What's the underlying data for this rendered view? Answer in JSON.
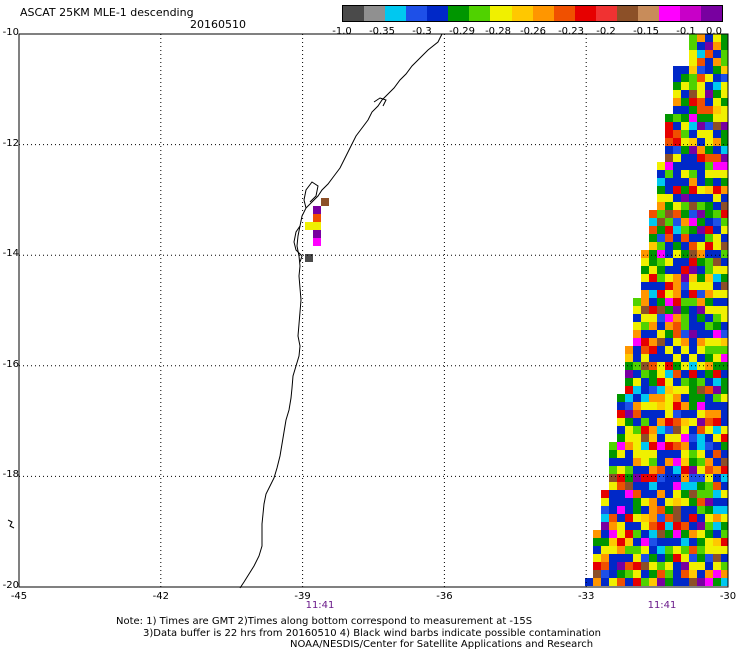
{
  "header": {
    "title": "ASCAT 25KM MLE-1 descending",
    "date": "20160510"
  },
  "colorbar": {
    "colors": [
      "#4a4a4a",
      "#909090",
      "#00c8f0",
      "#1e50e8",
      "#0028c8",
      "#009600",
      "#50d200",
      "#f0f000",
      "#ffc800",
      "#ff9600",
      "#f05000",
      "#e60000",
      "#f03232",
      "#8c5028",
      "#c88c5a",
      "#ff00ff",
      "#c800c8",
      "#7800a0"
    ],
    "labels": [
      "-1.0",
      "-0.35",
      "-0.3",
      "-0.29",
      "-0.28",
      "-0.26",
      "-0.23",
      "-0.2",
      "-0.15",
      "-0.1",
      "0.0"
    ]
  },
  "map": {
    "lat_labels": [
      "-10",
      "-12",
      "-14",
      "-16",
      "-18",
      "-20"
    ],
    "lon_labels": [
      "-45",
      "-42",
      "-39",
      "-36",
      "-33",
      "-30"
    ],
    "pass_times": [
      "11:41",
      "11:41"
    ],
    "frame_color": "#000000",
    "grid_color": "#000000"
  },
  "notes": [
    "Note: 1) Times are GMT 2)Times along bottom correspond to measurement at -15S",
    "3)Data buffer is 22 hrs from 20160510 4) Black wind barbs indicate possible contamination",
    "NOAA/NESDIS/Center for Satellite Applications and Research"
  ]
}
